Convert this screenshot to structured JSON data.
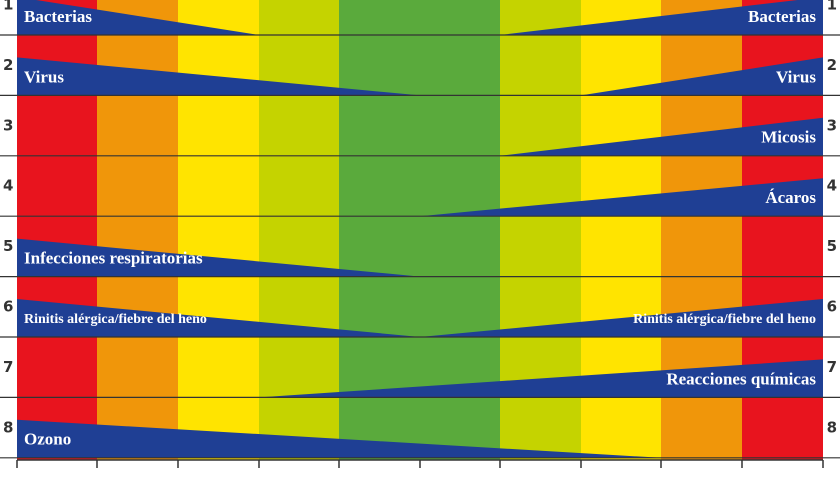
{
  "rows": [
    {
      "number": "1",
      "left": "Bacterias",
      "right": "Bacterias"
    },
    {
      "number": "2",
      "left": "Virus",
      "right": "Virus"
    },
    {
      "number": "3",
      "right": "Micosis"
    },
    {
      "number": "4",
      "right": "Ácaros"
    },
    {
      "number": "5",
      "left": "Infecciones respiratorias"
    },
    {
      "number": "6",
      "left": "Rinitis alérgica/fiebre del heno",
      "right": "Rinitis alérgica/fiebre del heno"
    },
    {
      "number": "7",
      "right": "Reacciones químicas"
    },
    {
      "number": "8",
      "left": "Ozono"
    }
  ]
}
